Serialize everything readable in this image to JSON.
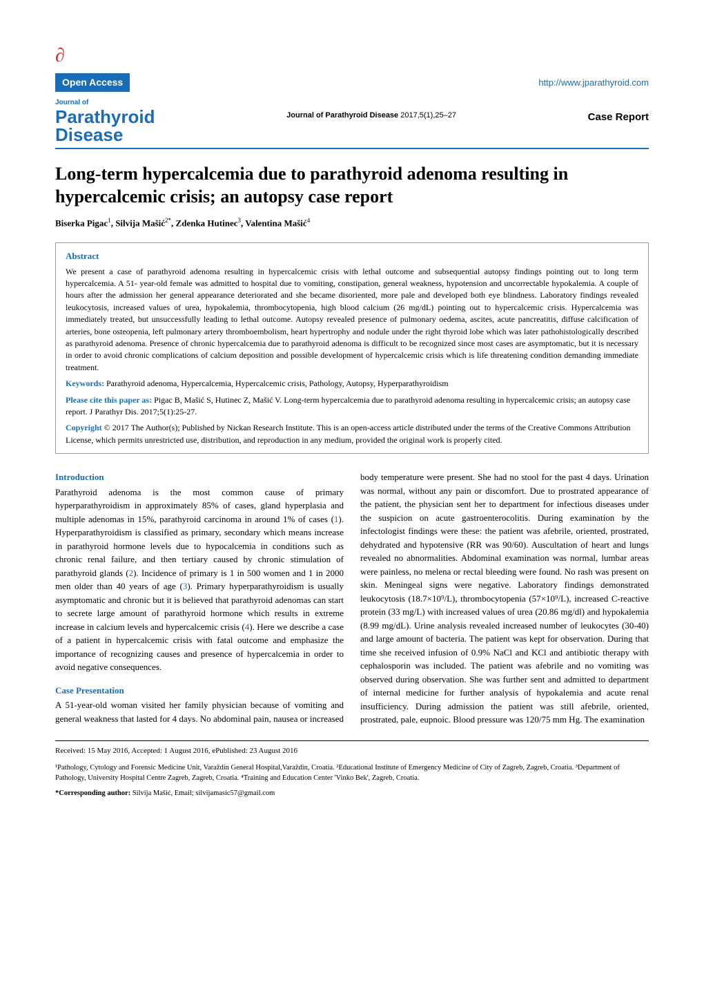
{
  "header": {
    "open_access_label": "Open Access",
    "url": "http://www.jparathyroid.com",
    "journal_of": "Journal of",
    "journal_line1": "Parathyroid",
    "journal_line2": "Disease",
    "citation_journal": "Journal of Parathyroid Disease",
    "citation_details": " 2017,5(1),25–27",
    "article_type": "Case Report"
  },
  "title": "Long-term hypercalcemia due to parathyroid adenoma resulting in hypercalcemic crisis; an autopsy case report",
  "authors_html": "Biserka Pigac<sup>1</sup>, Silvija Mašić<sup>2*</sup>, Zdenka Hutinec<sup>3</sup>, Valentina Mašić<sup>4</sup>",
  "abstract": {
    "heading": "Abstract",
    "text": "We present a case of parathyroid adenoma resulting in hypercalcemic crisis with lethal outcome and subsequential autopsy findings pointing out to long term hypercalcemia. A 51- year-old female was admitted to hospital due to vomiting, constipation, general weakness, hypotension and uncorrectable hypokalemia. A couple of hours after the admission her general appearance deteriorated and she became disoriented, more pale and developed both eye blindness. Laboratory findings revealed leukocytosis, increased values of urea, hypokalemia, thrombocytopenia, high blood calcium (26 mg/dL) pointing out to hypercalcemic crisis. Hypercalcemia was immediately treated, but unsuccessfully leading to lethal outcome. Autopsy revealed presence of pulmonary oedema, ascites, acute pancreatitis, diffuse calcification of arteries, bone osteopenia, left pulmonary artery thromboembolism, heart hypertrophy and nodule under the right thyroid lobe which was later pathohistologically described as parathyroid adenoma. Presence of chronic hypercalcemia due to parathyroid adenoma is difficult to be recognized since most cases are asymptomatic, but it is necessary in order to avoid chronic complications of calcium deposition and possible development of hypercalcemic crisis which is life threatening condition demanding immediate treatment.",
    "keywords_label": "Keywords:",
    "keywords": " Parathyroid adenoma, Hypercalcemia, Hypercalcemic crisis, Pathology, Autopsy, Hyperparathyroidism",
    "cite_label": "Please cite this paper as:",
    "cite": " Pigac B, Mašić S, Hutinec Z, Mašić V. Long-term hypercalcemia due to parathyroid adenoma resulting in hypercalcemic crisis; an autopsy case report. J Parathyr Dis. 2017;5(1):25-27.",
    "copyright_label": "Copyright",
    "copyright": " © 2017 The Author(s); Published by Nickan Research Institute. This is an open-access article distributed under the terms of the Creative Commons Attribution License, which permits unrestricted use, distribution, and reproduction in any medium, provided the original work is properly cited."
  },
  "sections": {
    "intro_heading": "Introduction",
    "intro_text": "Parathyroid adenoma is the most common cause of primary hyperparathyroidism in approximately 85% of cases, gland hyperplasia and multiple adenomas in 15%, parathyroid carcinoma in around 1% of cases (1). Hyperparathyroidism is classified as primary, secondary which means increase in parathyroid hormone levels due to hypocalcemia in conditions such as chronic renal failure, and then tertiary caused by chronic stimulation of parathyroid glands (2). Incidence of primary is 1 in 500 women and 1 in 2000 men older than 40 years of age (3). Primary hyperparathyroidism is usually asymptomatic and chronic but it is believed that parathyroid adenomas can start to secrete large amount of parathyroid hormone which results in extreme increase in calcium levels and hypercalcemic crisis (4). Here we describe a case of a patient in hypercalcemic crisis with fatal outcome and emphasize the importance of recognizing causes and presence of hypercalcemia in order to avoid negative consequences.",
    "case_heading": "Case Presentation",
    "case_text": "A 51-year-old woman visited her family physician because of vomiting and general weakness that lasted for 4 days. No abdominal pain, nausea or increased body temperature were present. She had no stool for the past 4 days. Urination was normal, without any pain or discomfort. Due to prostrated appearance of the patient, the physician sent her to department for infectious diseases under the suspicion on acute gastroenterocolitis. During examination by the infectologist findings were these: the patient was afebrile, oriented, prostrated, dehydrated and hypotensive (RR was 90/60). Auscultation of heart and lungs revealed no abnormalities. Abdominal examination was normal, lumbar areas were painless, no melena or rectal bleeding were found. No rash was present on skin. Meningeal signs were negative. Laboratory findings demonstrated leukocytosis (18.7×10⁹/L), thrombocytopenia (57×10⁹/L), increased C-reactive protein (33 mg/L) with increased values of urea (20.86 mg/dl) and hypokalemia (8.99 mg/dL). Urine analysis revealed increased number of leukocytes (30-40) and large amount of bacteria. The patient was kept for observation. During that time she received infusion of 0.9% NaCl and KCl and antibiotic therapy with cephalosporin was included. The patient was afebrile and no vomiting was observed during observation. She was further sent and admitted to department of internal medicine for further analysis of hypokalemia and acute renal insufficiency. During admission the patient was still afebrile, oriented, prostrated, pale, eupnoic. Blood pressure was 120/75 mm Hg. The examination"
  },
  "footer": {
    "dates": "Received: 15 May 2016, Accepted: 1 August 2016, ePublished: 23 August 2016",
    "affiliations": "¹Pathology, Cytology and Forensic Medicine Unit, Varaždin General Hospital,Varaždin, Croatia. ²Educational Institute of Emergency Medicine of City of Zagreb, Zagreb, Croatia. ³Department of Pathology, University Hospital Centre Zagreb, Zagreb, Croatia. ⁴Training and Education Center 'Vinko Bek', Zagreb, Croatia.",
    "corresponding_label": "*Corresponding author:",
    "corresponding": " Silvija Mašić, Email; silvijamasic57@gmail.com"
  },
  "colors": {
    "blue": "#1a6db5",
    "red": "#d93025",
    "text": "#000000",
    "border": "#999999"
  }
}
